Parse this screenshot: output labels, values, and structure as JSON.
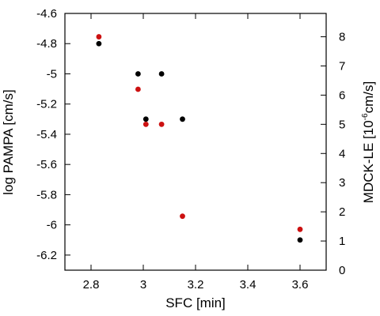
{
  "chart_data": {
    "type": "scatter",
    "title": "",
    "xlabel": "SFC [min]",
    "ylabel_left": "log PAMPA [cm/s]",
    "ylabel_right": {
      "prefix": "MDCK-LE [10",
      "exponent": "-6",
      "suffix": "cm/s]"
    },
    "xlim": [
      2.7,
      3.7
    ],
    "ylim_left": [
      -6.3,
      -4.6
    ],
    "ylim_right": [
      0,
      8.8
    ],
    "xticks": [
      "2.8",
      "3",
      "3.2",
      "3.4",
      "3.6"
    ],
    "yticks_left": [
      "-4.6",
      "-4.8",
      "-5",
      "-5.2",
      "-5.4",
      "-5.6",
      "-5.8",
      "-6",
      "-6.2"
    ],
    "yticks_right": [
      "0",
      "1",
      "2",
      "3",
      "4",
      "5",
      "6",
      "7",
      "8"
    ],
    "grid": false,
    "series": [
      {
        "axis": "left",
        "color": "#000000",
        "points": [
          {
            "x": 2.83,
            "y": -4.8
          },
          {
            "x": 2.98,
            "y": -5.0
          },
          {
            "x": 3.07,
            "y": -5.0
          },
          {
            "x": 3.01,
            "y": -5.3
          },
          {
            "x": 3.15,
            "y": -5.3
          },
          {
            "x": 3.6,
            "y": -6.1
          }
        ]
      },
      {
        "axis": "right",
        "color": "#cc1111",
        "points": [
          {
            "x": 2.83,
            "y": 8.0
          },
          {
            "x": 2.98,
            "y": 6.2
          },
          {
            "x": 3.01,
            "y": 5.0
          },
          {
            "x": 3.07,
            "y": 5.0
          },
          {
            "x": 3.15,
            "y": 1.85
          },
          {
            "x": 3.6,
            "y": 1.4
          }
        ]
      }
    ]
  }
}
